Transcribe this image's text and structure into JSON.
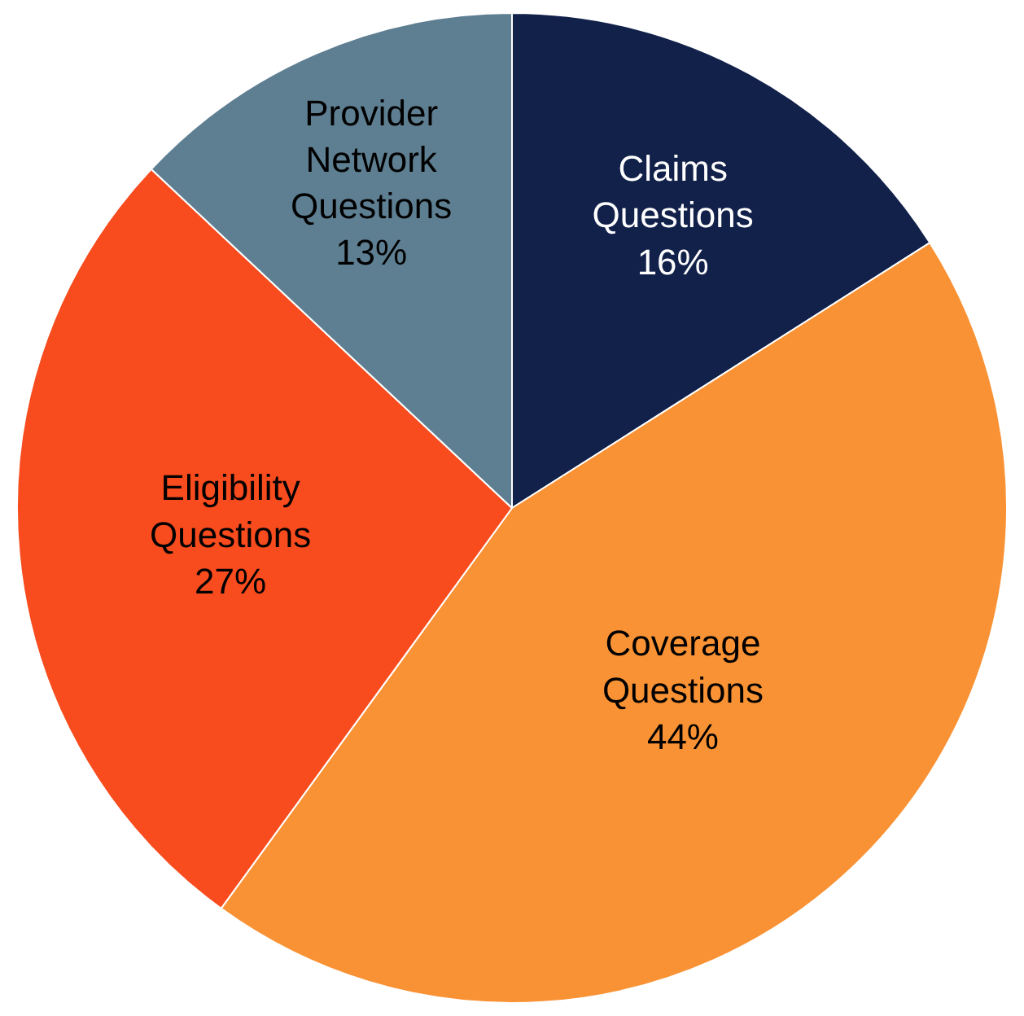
{
  "chart_data": {
    "type": "pie",
    "categories": [
      "Claims Questions",
      "Coverage Questions",
      "Eligibility Questions",
      "Provider Network Questions"
    ],
    "values": [
      16,
      44,
      27,
      13
    ],
    "value_labels": [
      "16%",
      "44%",
      "27%",
      "13%"
    ],
    "colors": [
      "#12214a",
      "#f99234",
      "#f84b1e",
      "#5e7f92"
    ],
    "legend": false
  }
}
